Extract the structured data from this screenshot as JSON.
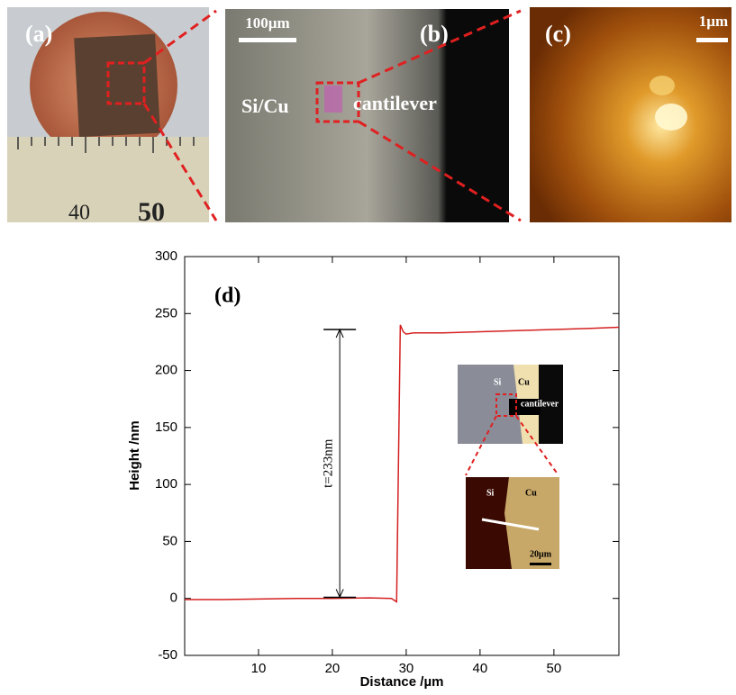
{
  "panels": {
    "a": {
      "label": "(a)",
      "ruler_labels": [
        "40",
        "50"
      ]
    },
    "b": {
      "label": "(b)",
      "scale_bar": "100µm",
      "texts": [
        "Si/Cu",
        "cantilever"
      ]
    },
    "c": {
      "label": "(c)",
      "scale_bar": "1µm"
    }
  },
  "chart_data": {
    "type": "line",
    "panel_label": "(d)",
    "x_label": "Distance /µm",
    "y_label": "Height /nm",
    "x": [
      0,
      5,
      10,
      15,
      20,
      25,
      28,
      28.7,
      29.2,
      29.6,
      30,
      31,
      35,
      40,
      45,
      50,
      55,
      58.8
    ],
    "series": [
      {
        "color": "#d42020",
        "values": [
          -1,
          -1,
          -0.5,
          0,
          0,
          0.5,
          0,
          -3,
          240,
          234,
          232,
          233,
          233,
          234,
          235,
          236,
          237,
          238
        ]
      }
    ],
    "xlim": [
      0,
      58.8
    ],
    "xticks": [
      10,
      20,
      30,
      40,
      50
    ],
    "ylim": [
      -50,
      300
    ],
    "yticks": [
      -50,
      0,
      50,
      100,
      150,
      200,
      250,
      300
    ],
    "dimension": {
      "label": "t=233nm",
      "x": 21,
      "from": 1,
      "to": 236
    },
    "inset": {
      "top": [
        "Si",
        "Cu",
        "cantilever"
      ],
      "bottom": [
        "Si",
        "Cu",
        "20µm"
      ]
    }
  }
}
